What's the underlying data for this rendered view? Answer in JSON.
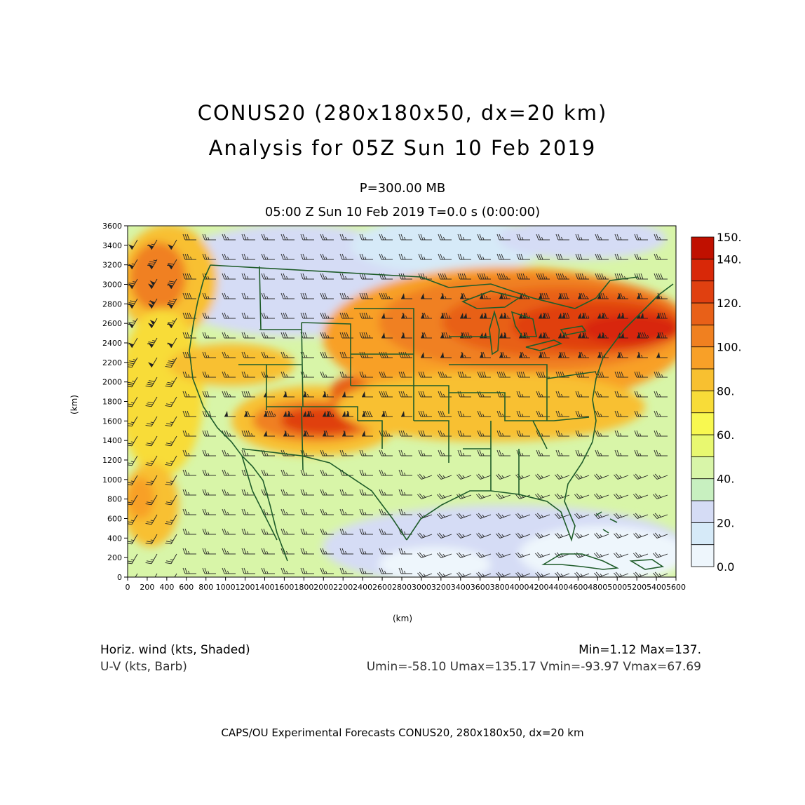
{
  "title": {
    "line1": "CONUS20 (280x180x50, dx=20 km)",
    "line2": "Analysis for 05Z Sun 10 Feb 2019"
  },
  "level_label": "P=300.00 MB",
  "valid_label": "05:00 Z Sun 10 Feb 2019    T=0.0 s (0:00:00)",
  "axes": {
    "x_unit": "(km)",
    "y_unit": "(km)",
    "x_ticks": [
      "0",
      "200",
      "400",
      "600",
      "800",
      "1000",
      "1200",
      "1400",
      "1600",
      "1800",
      "2000",
      "2200",
      "2400",
      "2600",
      "2800",
      "3000",
      "3200",
      "3400",
      "3600",
      "3800",
      "4000",
      "4200",
      "4400",
      "4600",
      "4800",
      "5000",
      "5200",
      "5400",
      "5600"
    ],
    "y_ticks": [
      "0",
      "200",
      "400",
      "600",
      "800",
      "1000",
      "1200",
      "1400",
      "1600",
      "1800",
      "2000",
      "2200",
      "2400",
      "2600",
      "2800",
      "3000",
      "3200",
      "3400",
      "3600"
    ],
    "x_range": [
      0,
      5600
    ],
    "y_range": [
      0,
      3600
    ]
  },
  "colorbar": {
    "labels": [
      "150.",
      "140.",
      "120.",
      "100.",
      "80.",
      "60.",
      "40.",
      "20.",
      "0.0"
    ],
    "levels": [
      0,
      10,
      20,
      30,
      40,
      50,
      60,
      70,
      80,
      90,
      100,
      110,
      120,
      130,
      140,
      150
    ],
    "colors": [
      "#eef6fc",
      "#d6eaf8",
      "#d5dcf5",
      "#c8f0c0",
      "#d8f5a8",
      "#e8f870",
      "#f8f850",
      "#f8dc38",
      "#f8c030",
      "#f8a028",
      "#f08020",
      "#e86018",
      "#e04010",
      "#d82808",
      "#c01000"
    ]
  },
  "legend": {
    "left1": "Horiz. wind (kts, Shaded)",
    "left2": "U-V (kts, Barb)",
    "right1": "Min=1.12 Max=137.",
    "right2": "Umin=-58.10 Umax=135.17 Vmin=-93.97 Vmax=67.69"
  },
  "footer": "CAPS/OU Experimental Forecasts   CONUS20, 280x180x50, dx=20 km",
  "map_colors": {
    "boundary": "#1f5c2a",
    "barb": "#222222"
  }
}
